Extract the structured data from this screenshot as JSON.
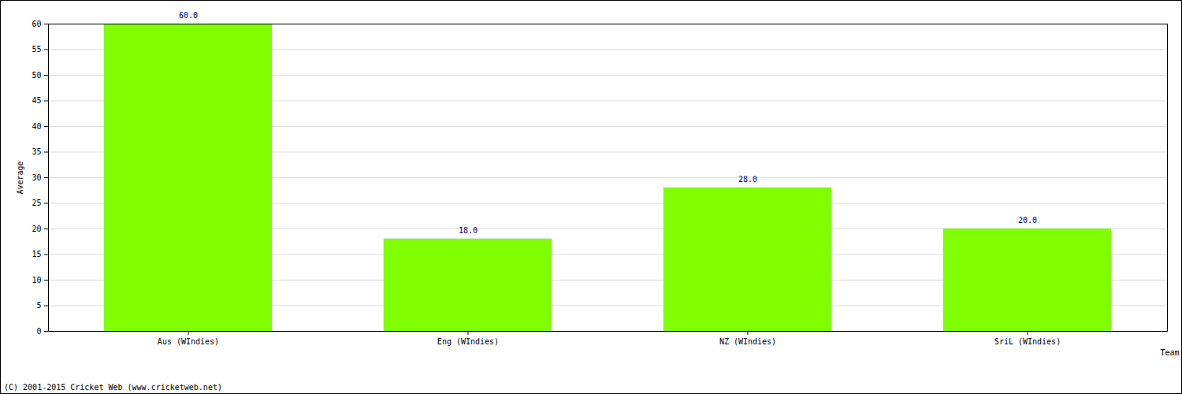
{
  "chart_data": {
    "type": "bar",
    "categories": [
      "Aus (WIndies)",
      "Eng (WIndies)",
      "NZ (WIndies)",
      "SriL (WIndies)"
    ],
    "values": [
      60,
      18,
      28,
      20
    ],
    "value_labels": [
      "60.0",
      "18.0",
      "28.0",
      "20.0"
    ],
    "data_labels": true,
    "color": "#80ff00",
    "x_label": "Team",
    "y_label": "Average",
    "ylim": [
      0,
      60
    ],
    "yticks": [
      0,
      5,
      10,
      15,
      20,
      25,
      30,
      35,
      40,
      45,
      50,
      55,
      60
    ],
    "grid": true,
    "caption": "(C) 2001-2015 Cricket Web (www.cricketweb.net)"
  }
}
